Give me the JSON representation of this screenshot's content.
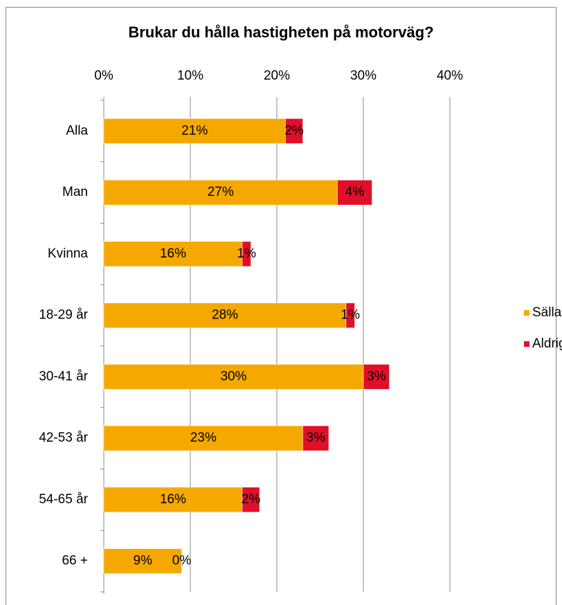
{
  "chart_data": {
    "type": "stacked_bar_horizontal",
    "title": "Brukar du hålla hastigheten på motorväg?",
    "categories": [
      "Alla",
      "Man",
      "Kvinna",
      "18-29 år",
      "30-41 år",
      "42-53 år",
      "54-65 år",
      "66 +"
    ],
    "series": [
      {
        "name": "Sällan",
        "color": "#f5a800",
        "values": [
          21,
          27,
          16,
          28,
          30,
          23,
          16,
          9
        ],
        "value_labels": [
          "21%",
          "27%",
          "16%",
          "28%",
          "30%",
          "23%",
          "16%",
          "9%"
        ]
      },
      {
        "name": "Aldrig",
        "color": "#e0102a",
        "values": [
          2,
          4,
          1,
          1,
          3,
          3,
          2,
          0
        ],
        "value_labels": [
          "2%",
          "4%",
          "1%",
          "1%",
          "3%",
          "3%",
          "2%",
          "0%"
        ]
      }
    ],
    "xlim": [
      0,
      40
    ],
    "xticks": [
      {
        "value": 0,
        "label": "0%"
      },
      {
        "value": 10,
        "label": "10%"
      },
      {
        "value": 20,
        "label": "20%"
      },
      {
        "value": 30,
        "label": "30%"
      },
      {
        "value": 40,
        "label": "40%"
      }
    ],
    "grid": true,
    "legend": "right"
  }
}
